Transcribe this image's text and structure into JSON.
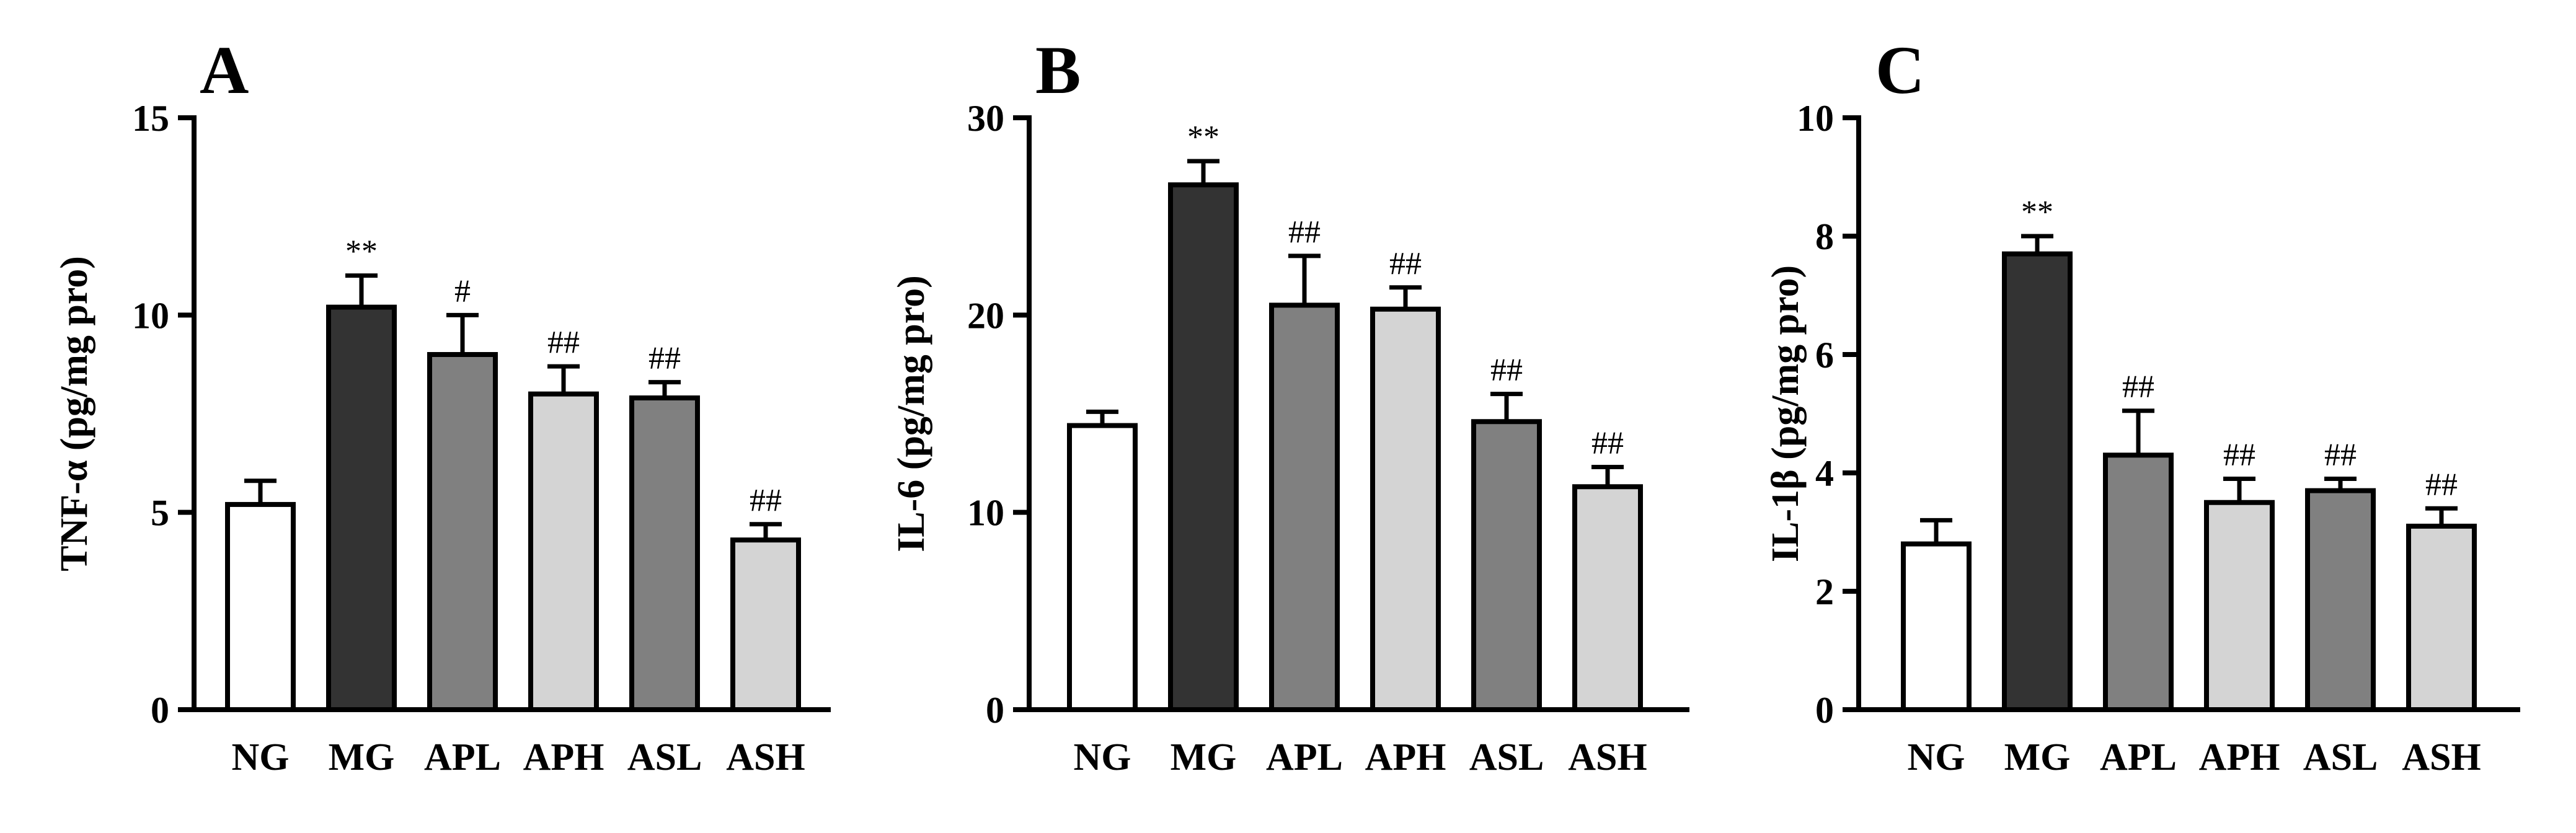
{
  "chart_data": [
    {
      "type": "bar",
      "panel": "A",
      "ylabel": "TNF-α (pg/mg pro)",
      "ylim": [
        0,
        15
      ],
      "yticks": [
        0,
        5,
        10,
        15
      ],
      "categories": [
        "NG",
        "MG",
        "APL",
        "APH",
        "ASL",
        "ASH"
      ],
      "values": [
        5.2,
        10.2,
        9.0,
        8.0,
        7.9,
        4.3
      ],
      "errors": [
        0.6,
        0.8,
        1.0,
        0.7,
        0.4,
        0.4
      ],
      "annotations": [
        "",
        "**",
        "#",
        "##",
        "##",
        "##"
      ]
    },
    {
      "type": "bar",
      "panel": "B",
      "ylabel": "IL-6 (pg/mg pro)",
      "ylim": [
        0,
        30
      ],
      "yticks": [
        0,
        10,
        20,
        30
      ],
      "categories": [
        "NG",
        "MG",
        "APL",
        "APH",
        "ASL",
        "ASH"
      ],
      "values": [
        14.4,
        26.6,
        20.5,
        20.3,
        14.6,
        11.3
      ],
      "errors": [
        0.7,
        1.2,
        2.5,
        1.1,
        1.4,
        1.0
      ],
      "annotations": [
        "",
        "**",
        "##",
        "##",
        "##",
        "##"
      ]
    },
    {
      "type": "bar",
      "panel": "C",
      "ylabel": "IL-1β (pg/mg pro)",
      "ylim": [
        0,
        10
      ],
      "yticks": [
        0,
        2,
        4,
        6,
        8,
        10
      ],
      "categories": [
        "NG",
        "MG",
        "APL",
        "APH",
        "ASL",
        "ASH"
      ],
      "values": [
        2.8,
        7.7,
        4.3,
        3.5,
        3.7,
        3.1
      ],
      "errors": [
        0.4,
        0.3,
        0.75,
        0.4,
        0.2,
        0.3
      ],
      "annotations": [
        "",
        "**",
        "##",
        "##",
        "##",
        "##"
      ]
    }
  ],
  "colors": {
    "NG": "#ffffff",
    "MG": "#333333",
    "APL": "#808080",
    "APH": "#d4d4d4",
    "ASL": "#808080",
    "ASH": "#d4d4d4"
  }
}
